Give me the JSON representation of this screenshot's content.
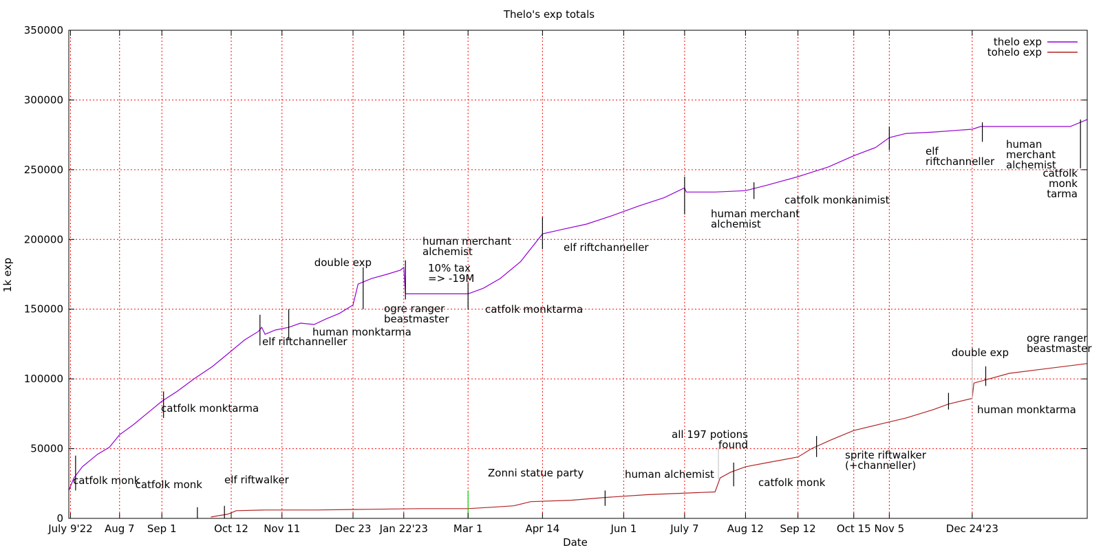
{
  "chart_data": {
    "type": "line",
    "title": "Thelo's exp totals",
    "xlabel": "Date",
    "ylabel": "1k exp",
    "ylim": [
      0,
      350000
    ],
    "xlim": [
      "2022-07-08",
      "2024-03-01"
    ],
    "grid": true,
    "grid_color": "#ff0000",
    "legend_position": "top-right",
    "y_ticks": [
      {
        "value": 0,
        "label": "0"
      },
      {
        "value": 50000,
        "label": "50000"
      },
      {
        "value": 100000,
        "label": "100000"
      },
      {
        "value": 150000,
        "label": "150000"
      },
      {
        "value": 200000,
        "label": "200000"
      },
      {
        "value": 250000,
        "label": "250000"
      },
      {
        "value": 300000,
        "label": "300000"
      },
      {
        "value": 350000,
        "label": "350000"
      }
    ],
    "x_ticks": [
      {
        "date": "2022-07-09",
        "label": "July 9'22"
      },
      {
        "date": "2022-08-07",
        "label": "Aug 7"
      },
      {
        "date": "2022-09-01",
        "label": "Sep 1"
      },
      {
        "date": "2022-10-12",
        "label": "Oct 12"
      },
      {
        "date": "2022-11-11",
        "label": "Nov 11"
      },
      {
        "date": "2022-12-23",
        "label": "Dec 23"
      },
      {
        "date": "2023-01-22",
        "label": "Jan 22'23"
      },
      {
        "date": "2023-03-01",
        "label": "Mar 1"
      },
      {
        "date": "2023-04-14",
        "label": "Apr 14"
      },
      {
        "date": "2023-06-01",
        "label": "Jun 1"
      },
      {
        "date": "2023-07-07",
        "label": "July 7"
      },
      {
        "date": "2023-08-12",
        "label": "Aug 12"
      },
      {
        "date": "2023-09-12",
        "label": "Sep 12"
      },
      {
        "date": "2023-10-15",
        "label": "Oct 15"
      },
      {
        "date": "2023-11-05",
        "label": "Nov 5"
      },
      {
        "date": "2023-12-24",
        "label": "Dec 24'23"
      }
    ],
    "series": [
      {
        "name": "thelo exp",
        "color": "#9400d3",
        "points": [
          [
            "2022-07-08",
            20000
          ],
          [
            "2022-07-11",
            29000
          ],
          [
            "2022-07-16",
            37000
          ],
          [
            "2022-07-25",
            46000
          ],
          [
            "2022-08-01",
            51000
          ],
          [
            "2022-08-07",
            60000
          ],
          [
            "2022-08-15",
            67000
          ],
          [
            "2022-08-25",
            77000
          ],
          [
            "2022-09-01",
            84000
          ],
          [
            "2022-09-10",
            91000
          ],
          [
            "2022-09-20",
            100000
          ],
          [
            "2022-10-01",
            109000
          ],
          [
            "2022-10-12",
            120000
          ],
          [
            "2022-10-20",
            128000
          ],
          [
            "2022-10-28",
            134000
          ],
          [
            "2022-10-30",
            137000
          ],
          [
            "2022-11-01",
            132000
          ],
          [
            "2022-11-07",
            135000
          ],
          [
            "2022-11-15",
            137000
          ],
          [
            "2022-11-22",
            140000
          ],
          [
            "2022-11-30",
            139000
          ],
          [
            "2022-12-07",
            143000
          ],
          [
            "2022-12-15",
            147000
          ],
          [
            "2022-12-23",
            153000
          ],
          [
            "2022-12-26",
            168000
          ],
          [
            "2023-01-03",
            172000
          ],
          [
            "2023-01-12",
            175000
          ],
          [
            "2023-01-20",
            178000
          ],
          [
            "2023-01-22",
            180000
          ],
          [
            "2023-01-23",
            161000
          ],
          [
            "2023-02-15",
            161000
          ],
          [
            "2023-03-01",
            161000
          ],
          [
            "2023-03-10",
            165000
          ],
          [
            "2023-03-20",
            172000
          ],
          [
            "2023-04-01",
            184000
          ],
          [
            "2023-04-14",
            204000
          ],
          [
            "2023-04-25",
            207000
          ],
          [
            "2023-05-10",
            211000
          ],
          [
            "2023-05-25",
            217000
          ],
          [
            "2023-06-10",
            224000
          ],
          [
            "2023-06-25",
            230000
          ],
          [
            "2023-07-07",
            237000
          ],
          [
            "2023-07-08",
            234000
          ],
          [
            "2023-07-25",
            234000
          ],
          [
            "2023-08-12",
            235000
          ],
          [
            "2023-08-25",
            239000
          ],
          [
            "2023-09-12",
            245000
          ],
          [
            "2023-09-30",
            252000
          ],
          [
            "2023-10-15",
            260000
          ],
          [
            "2023-10-28",
            266000
          ],
          [
            "2023-11-05",
            273000
          ],
          [
            "2023-11-15",
            276000
          ],
          [
            "2023-12-01",
            277000
          ],
          [
            "2023-12-24",
            279000
          ],
          [
            "2023-12-29",
            281000
          ],
          [
            "2024-01-15",
            281000
          ],
          [
            "2024-02-20",
            281000
          ],
          [
            "2024-03-01",
            286000
          ]
        ]
      },
      {
        "name": "tohelo exp",
        "color": "#b22222",
        "points": [
          [
            "2022-09-30",
            1000
          ],
          [
            "2022-10-05",
            2000
          ],
          [
            "2022-10-10",
            3000
          ],
          [
            "2022-10-15",
            5500
          ],
          [
            "2022-11-01",
            6000
          ],
          [
            "2022-12-01",
            6000
          ],
          [
            "2023-01-01",
            6500
          ],
          [
            "2023-02-01",
            7000
          ],
          [
            "2023-03-01",
            7000
          ],
          [
            "2023-03-15",
            8000
          ],
          [
            "2023-03-28",
            9000
          ],
          [
            "2023-04-07",
            12000
          ],
          [
            "2023-05-01",
            13000
          ],
          [
            "2023-05-21",
            15000
          ],
          [
            "2023-06-15",
            17000
          ],
          [
            "2023-07-05",
            18000
          ],
          [
            "2023-07-25",
            19000
          ],
          [
            "2023-07-28",
            29000
          ],
          [
            "2023-08-03",
            33000
          ],
          [
            "2023-08-12",
            37000
          ],
          [
            "2023-08-25",
            40000
          ],
          [
            "2023-09-12",
            44000
          ],
          [
            "2023-09-20",
            50000
          ],
          [
            "2023-10-01",
            56000
          ],
          [
            "2023-10-15",
            63000
          ],
          [
            "2023-11-01",
            68000
          ],
          [
            "2023-11-15",
            72000
          ],
          [
            "2023-12-01",
            78000
          ],
          [
            "2023-12-10",
            82000
          ],
          [
            "2023-12-24",
            86000
          ],
          [
            "2023-12-25",
            97000
          ],
          [
            "2024-01-15",
            104000
          ],
          [
            "2024-03-01",
            111000
          ]
        ]
      }
    ],
    "annotations": [
      {
        "date": "2022-07-12",
        "text": [
          "catfolk monk"
        ],
        "anchor": "start"
      },
      {
        "date": "2022-09-22",
        "text": [
          "catfolk monk"
        ],
        "anchor": "end"
      },
      {
        "date": "2022-10-08",
        "text": [
          "elf riftwalker"
        ],
        "anchor": "start"
      },
      {
        "date": "2022-09-02",
        "text": [
          "catfolk monktarma"
        ],
        "anchor": "start"
      },
      {
        "date": "2022-10-29",
        "text": [
          "elf riftchanneller"
        ],
        "anchor": "start"
      },
      {
        "date": "2022-11-15",
        "text": [
          "human monktarma"
        ],
        "anchor": "start"
      },
      {
        "date": "2022-12-29",
        "text": [
          "double exp"
        ],
        "anchor": "end"
      },
      {
        "date": "2022-12-31",
        "text": [
          "ogre ranger",
          "beastmaster"
        ],
        "anchor": "start"
      },
      {
        "date": "2023-01-23",
        "text": [
          "human merchant",
          "alchemist"
        ],
        "anchor": "start"
      },
      {
        "date": "2023-01-28",
        "text": [
          "10% tax",
          "=> -19M"
        ],
        "anchor": "start"
      },
      {
        "date": "2023-03-01",
        "text": [
          "catfolk monktarma"
        ],
        "anchor": "start"
      },
      {
        "date": "2023-03-01",
        "text": [
          "Zonni statue party"
        ],
        "anchor": "start"
      },
      {
        "date": "2023-04-14",
        "text": [
          "elf riftchanneller"
        ],
        "anchor": "start"
      },
      {
        "date": "2023-05-21",
        "text": [
          "human alchemist"
        ],
        "anchor": "start"
      },
      {
        "date": "2023-07-07",
        "text": [
          "human merchant",
          "alchemist"
        ],
        "anchor": "start"
      },
      {
        "date": "2023-07-27",
        "text": [
          "all 197 potions",
          "found"
        ],
        "anchor": "end"
      },
      {
        "date": "2023-08-05",
        "text": [
          "catfolk monk"
        ],
        "anchor": "start"
      },
      {
        "date": "2023-08-17",
        "text": [
          "catfolk monkanimist"
        ],
        "anchor": "start"
      },
      {
        "date": "2023-09-23",
        "text": [
          "sprite riftwalker",
          "(+channeller)"
        ],
        "anchor": "start"
      },
      {
        "date": "2023-11-05",
        "text": [
          "elf",
          "riftchanneller"
        ],
        "anchor": "start"
      },
      {
        "date": "2023-12-24",
        "text": [
          "double exp"
        ],
        "anchor": "end"
      },
      {
        "date": "2023-12-06",
        "text": [
          "human monktarma"
        ],
        "anchor": "start"
      },
      {
        "date": "2023-12-26",
        "text": [
          "human",
          "merchant",
          "alchemist"
        ],
        "anchor": "start"
      },
      {
        "date": "2024-01-01",
        "text": [
          "ogre ranger",
          "beastmaster"
        ],
        "anchor": "start"
      },
      {
        "date": "2024-02-26",
        "text": [
          "catfolk",
          "monk",
          "tarma"
        ],
        "anchor": "end"
      }
    ]
  }
}
